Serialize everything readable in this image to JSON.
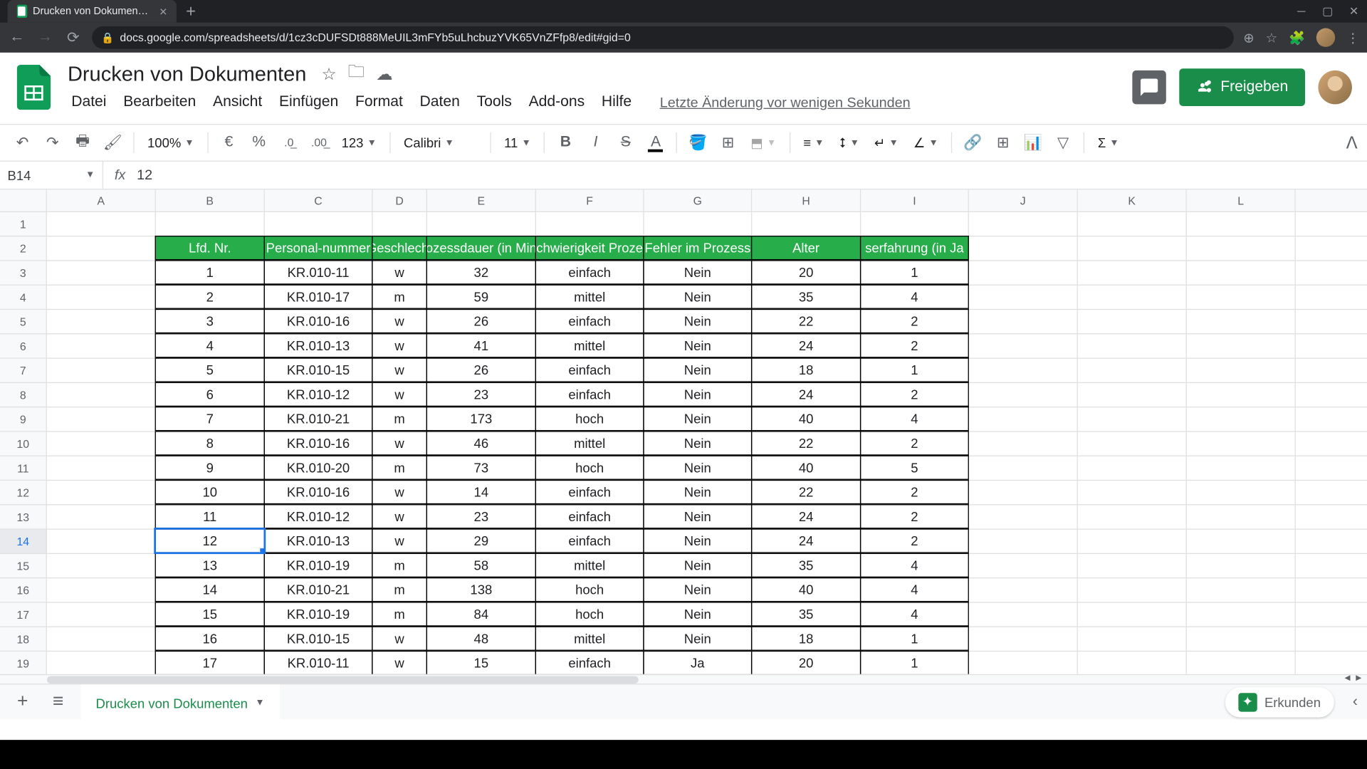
{
  "browser": {
    "tab_title": "Drucken von Dokumenten - Goo",
    "url": "docs.google.com/spreadsheets/d/1cz3cDUFSDt888MeUIL3mFYb5uLhcbuzYVK65VnZFfp8/edit#gid=0"
  },
  "doc": {
    "title": "Drucken von Dokumenten",
    "last_edit": "Letzte Änderung vor wenigen Sekunden",
    "share_label": "Freigeben"
  },
  "menu": {
    "file": "Datei",
    "edit": "Bearbeiten",
    "view": "Ansicht",
    "insert": "Einfügen",
    "format": "Format",
    "data": "Daten",
    "tools": "Tools",
    "addons": "Add-ons",
    "help": "Hilfe"
  },
  "toolbar": {
    "zoom": "100%",
    "currency": "€",
    "percent": "%",
    "dec_dec": ".0",
    "inc_dec": ".00",
    "num_format": "123",
    "font": "Calibri",
    "font_size": "11"
  },
  "formula": {
    "name_box": "B14",
    "value": "12"
  },
  "sheet_tab": "Drucken von Dokumenten",
  "explore_label": "Erkunden",
  "columns": [
    "A",
    "B",
    "C",
    "D",
    "E",
    "F",
    "G",
    "H",
    "I",
    "J",
    "K",
    "L"
  ],
  "table": {
    "header_bg": "#27ae4b",
    "headers": [
      "Lfd. Nr.",
      "Personal-nummer",
      "Geschlecht",
      "ozessdauer (in Min",
      "chwierigkeit Proze",
      "Fehler im Prozess",
      "Alter",
      "serfahrung (in Ja"
    ],
    "rows": [
      [
        "1",
        "KR.010-11",
        "w",
        "32",
        "einfach",
        "Nein",
        "20",
        "1"
      ],
      [
        "2",
        "KR.010-17",
        "m",
        "59",
        "mittel",
        "Nein",
        "35",
        "4"
      ],
      [
        "3",
        "KR.010-16",
        "w",
        "26",
        "einfach",
        "Nein",
        "22",
        "2"
      ],
      [
        "4",
        "KR.010-13",
        "w",
        "41",
        "mittel",
        "Nein",
        "24",
        "2"
      ],
      [
        "5",
        "KR.010-15",
        "w",
        "26",
        "einfach",
        "Nein",
        "18",
        "1"
      ],
      [
        "6",
        "KR.010-12",
        "w",
        "23",
        "einfach",
        "Nein",
        "24",
        "2"
      ],
      [
        "7",
        "KR.010-21",
        "m",
        "173",
        "hoch",
        "Nein",
        "40",
        "4"
      ],
      [
        "8",
        "KR.010-16",
        "w",
        "46",
        "mittel",
        "Nein",
        "22",
        "2"
      ],
      [
        "9",
        "KR.010-20",
        "m",
        "73",
        "hoch",
        "Nein",
        "40",
        "5"
      ],
      [
        "10",
        "KR.010-16",
        "w",
        "14",
        "einfach",
        "Nein",
        "22",
        "2"
      ],
      [
        "11",
        "KR.010-12",
        "w",
        "23",
        "einfach",
        "Nein",
        "24",
        "2"
      ],
      [
        "12",
        "KR.010-13",
        "w",
        "29",
        "einfach",
        "Nein",
        "24",
        "2"
      ],
      [
        "13",
        "KR.010-19",
        "m",
        "58",
        "mittel",
        "Nein",
        "35",
        "4"
      ],
      [
        "14",
        "KR.010-21",
        "m",
        "138",
        "hoch",
        "Nein",
        "40",
        "4"
      ],
      [
        "15",
        "KR.010-19",
        "m",
        "84",
        "hoch",
        "Nein",
        "35",
        "4"
      ],
      [
        "16",
        "KR.010-15",
        "w",
        "48",
        "mittel",
        "Nein",
        "18",
        "1"
      ],
      [
        "17",
        "KR.010-11",
        "w",
        "15",
        "einfach",
        "Ja",
        "20",
        "1"
      ]
    ],
    "selected_row_index": 11
  }
}
